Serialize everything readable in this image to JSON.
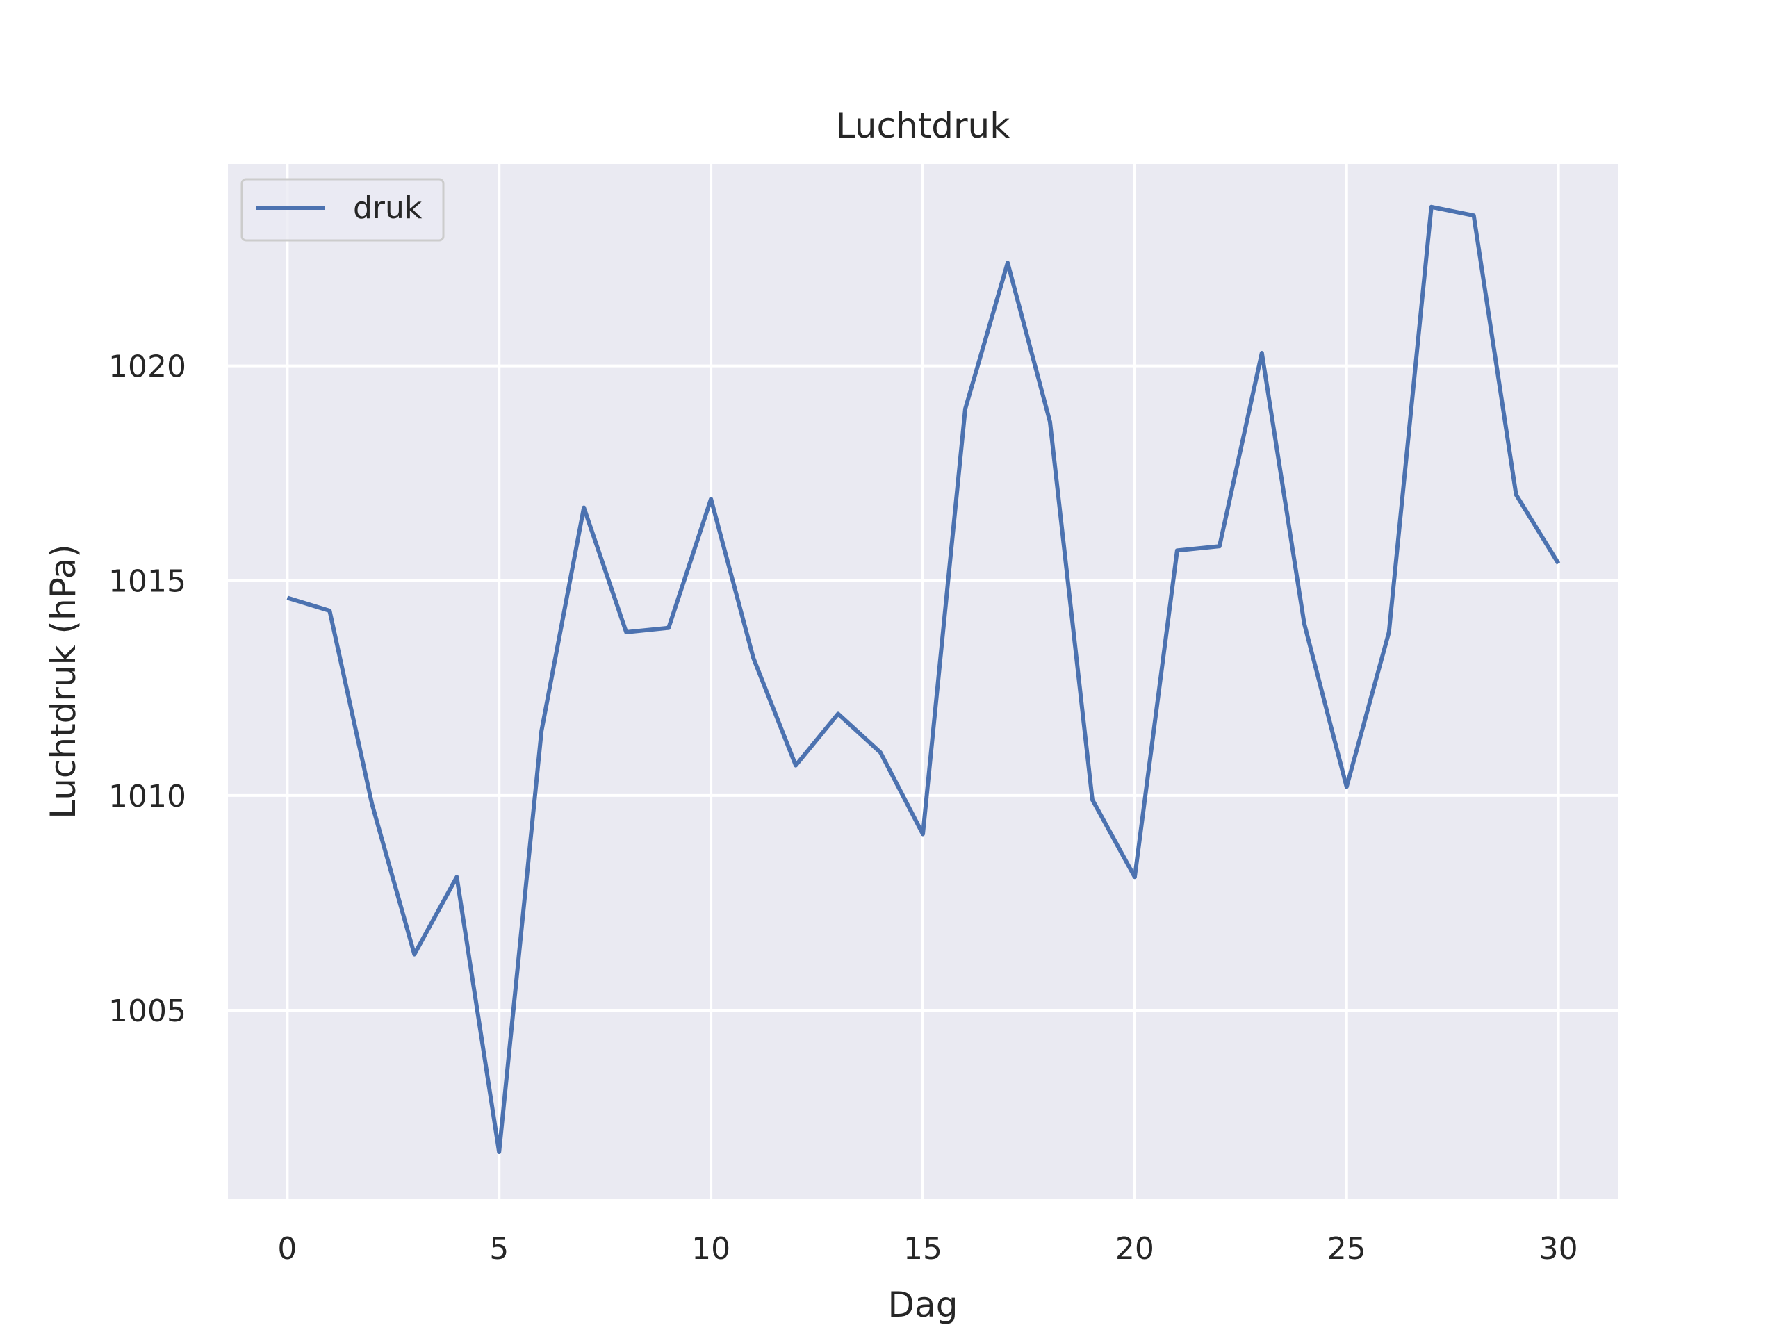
{
  "chart_data": {
    "type": "line",
    "title": "Luchtdruk",
    "xlabel": "Dag",
    "ylabel": "Luchtdruk (hPa)",
    "x": [
      0,
      1,
      2,
      3,
      4,
      5,
      6,
      7,
      8,
      9,
      10,
      11,
      12,
      13,
      14,
      15,
      16,
      17,
      18,
      19,
      20,
      21,
      22,
      23,
      24,
      25,
      26,
      27,
      28,
      29,
      30
    ],
    "series": [
      {
        "name": "druk",
        "values": [
          1014.6,
          1014.3,
          1009.8,
          1006.3,
          1008.1,
          1001.7,
          1011.5,
          1016.7,
          1013.8,
          1013.9,
          1016.9,
          1013.2,
          1010.7,
          1011.9,
          1011.0,
          1009.1,
          1019.0,
          1022.4,
          1018.7,
          1009.9,
          1008.1,
          1015.7,
          1015.8,
          1020.3,
          1014.0,
          1010.2,
          1013.8,
          1023.7,
          1023.5,
          1017.0,
          1015.4
        ],
        "color": "#4c72b0"
      }
    ],
    "xlim": [
      -1.4,
      31.4
    ],
    "ylim": [
      1000.6,
      1024.7
    ],
    "xticks": [
      0,
      5,
      10,
      15,
      20,
      25,
      30
    ],
    "yticks": [
      1005,
      1010,
      1015,
      1020
    ],
    "grid": true,
    "legend": "upper-left",
    "background": "#eaeaf2",
    "grid_color": "#ffffff"
  }
}
